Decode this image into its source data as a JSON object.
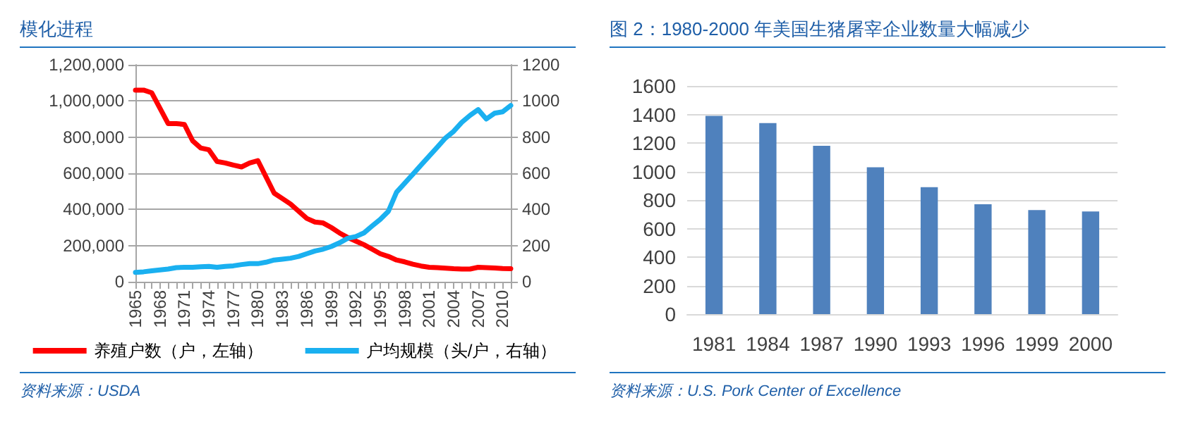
{
  "chart_data": [
    {
      "type": "line",
      "title": "模化进程",
      "categories": [
        "1965",
        null,
        null,
        "1968",
        null,
        null,
        "1971",
        null,
        null,
        "1974",
        null,
        null,
        "1977",
        null,
        null,
        "1980",
        null,
        null,
        "1983",
        null,
        null,
        "1986",
        null,
        null,
        "1989",
        null,
        null,
        "1992",
        null,
        null,
        "1995",
        null,
        null,
        "1998",
        null,
        null,
        "2001",
        null,
        null,
        "2004",
        null,
        null,
        "2007",
        null,
        null,
        "2010",
        null
      ],
      "series": [
        {
          "name": "养殖户数（户，左轴）",
          "color": "#ff0000",
          "values": [
            1060000,
            1060000,
            1045000,
            960000,
            875000,
            875000,
            870000,
            780000,
            740000,
            730000,
            665000,
            657000,
            645000,
            635000,
            657000,
            670000,
            580000,
            490000,
            460000,
            430000,
            390000,
            350000,
            330000,
            325000,
            300000,
            270000,
            245000,
            225000,
            205000,
            180000,
            155000,
            140000,
            120000,
            110000,
            97000,
            87000,
            80000,
            78000,
            75000,
            72000,
            70000,
            70000,
            80000,
            78000,
            76000,
            73000,
            72000
          ]
        },
        {
          "name": "户均规模（头/户，右轴）",
          "color": "#1ab0f0",
          "axis": "y2",
          "values": [
            52,
            55,
            60,
            65,
            70,
            78,
            80,
            80,
            83,
            85,
            80,
            85,
            88,
            95,
            100,
            100,
            108,
            120,
            125,
            130,
            140,
            155,
            170,
            180,
            195,
            215,
            240,
            250,
            270,
            308,
            345,
            390,
            495,
            545,
            595,
            645,
            695,
            745,
            795,
            832,
            882,
            920,
            952,
            900,
            932,
            940,
            975
          ]
        }
      ],
      "ylim": [
        0,
        1200000
      ],
      "yticks": [
        0,
        {
          "value": 200000,
          "label": "200,000"
        },
        {
          "value": 400000,
          "label": "400,000"
        },
        {
          "value": 600000,
          "label": "600,000"
        },
        {
          "value": 800000,
          "label": "800,000"
        },
        {
          "value": 1000000,
          "label": "1,000,000"
        },
        {
          "value": 1200000,
          "label": "1,200,000"
        }
      ],
      "y2lim": [
        0,
        1200
      ],
      "y2ticks": [
        0,
        200,
        400,
        600,
        800,
        1000,
        1200
      ],
      "grid": "y",
      "legend": "bottom",
      "marker": "none",
      "line_style": "solid",
      "annotations": [
        "资料来源：USDA"
      ]
    },
    {
      "type": "bar",
      "title": "图 2：1980-2000 年美国生猪屠宰企业数量大幅减少",
      "categories": [
        "1981",
        "1984",
        "1987",
        "1990",
        "1993",
        "1996",
        "1999",
        "2000"
      ],
      "values": [
        1390,
        1340,
        1180,
        1030,
        890,
        770,
        730,
        720
      ],
      "color": "#4f81bd",
      "ylim": [
        0,
        1600
      ],
      "yticks": [
        0,
        200,
        400,
        600,
        800,
        1000,
        1200,
        1400,
        1600
      ],
      "grid": "y",
      "legend": false,
      "annotations": [
        "资料来源：U.S. Pork Center of Excellence"
      ]
    }
  ]
}
